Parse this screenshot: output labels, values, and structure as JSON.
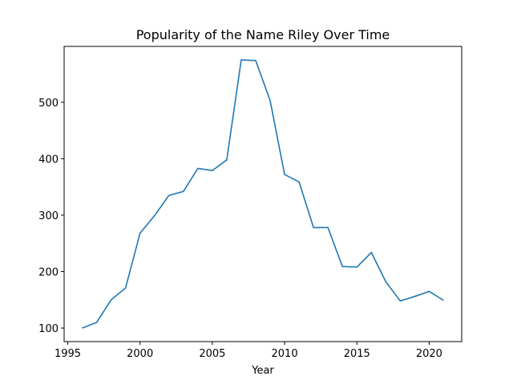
{
  "chart_data": {
    "type": "line",
    "title": "Popularity of the Name Riley Over Time",
    "xlabel": "Year",
    "ylabel": "",
    "x": [
      1996,
      1997,
      1998,
      1999,
      2000,
      2001,
      2002,
      2003,
      2004,
      2005,
      2006,
      2007,
      2008,
      2009,
      2010,
      2011,
      2012,
      2013,
      2014,
      2015,
      2016,
      2017,
      2018,
      2019,
      2020,
      2021
    ],
    "series": [
      {
        "values": [
          100,
          110,
          150,
          171,
          268,
          299,
          335,
          342,
          383,
          379,
          398,
          575,
          574,
          503,
          372,
          359,
          278,
          278,
          209,
          208,
          234,
          182,
          148,
          156,
          165,
          149
        ],
        "color": "#1f77b4"
      }
    ],
    "xlim": [
      1994.75,
      2022.25
    ],
    "ylim": [
      76,
      599
    ],
    "xticks": [
      "1995",
      "2000",
      "2005",
      "2010",
      "2015",
      "2020"
    ],
    "yticks": [
      "100",
      "200",
      "300",
      "400",
      "500"
    ],
    "grid": false,
    "legend": "none"
  }
}
